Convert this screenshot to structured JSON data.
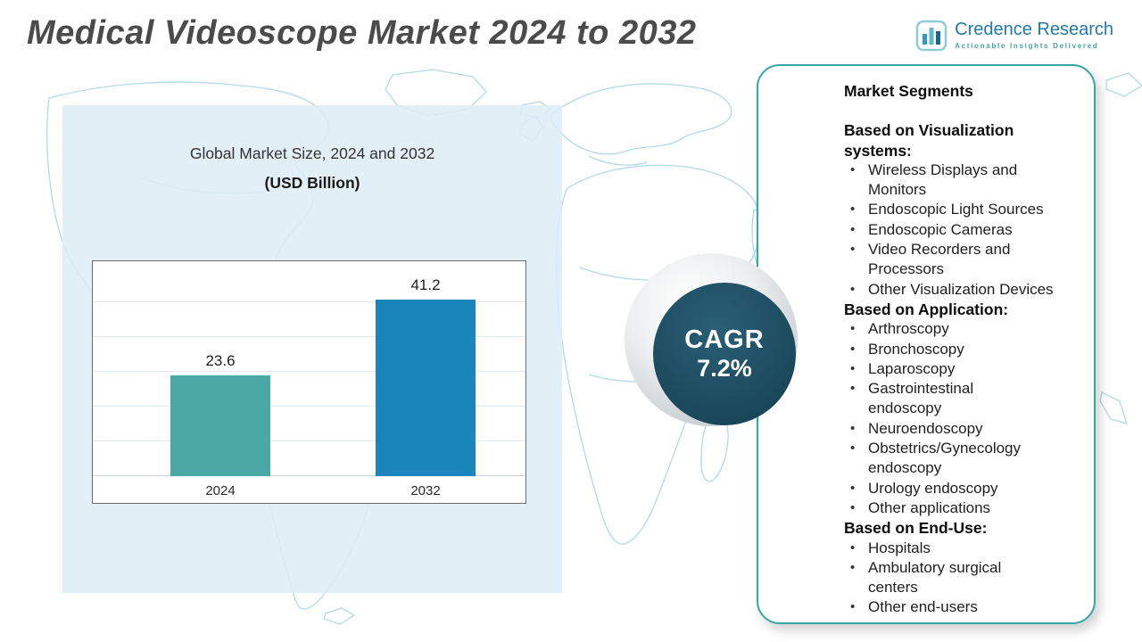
{
  "header": {
    "title": "Medical Videoscope Market 2024 to 2032",
    "logo": {
      "name": "Credence Research",
      "tagline": "Actionable Insights Delivered"
    }
  },
  "chart_panel": {
    "title_line1": "Global Market Size, 2024 and 2032",
    "title_line2": "(USD Billion)"
  },
  "chart_data": {
    "type": "bar",
    "title": "Global Market Size, 2024 and 2032 (USD Billion)",
    "categories": [
      "2024",
      "2032"
    ],
    "values": [
      23.6,
      41.2
    ],
    "value_labels": [
      "23.6",
      "41.2"
    ],
    "bar_colors": [
      "#4aa9a4",
      "#1a86bb"
    ],
    "xlabel": "",
    "ylabel": "",
    "ylim": [
      0,
      45
    ],
    "grid": true,
    "legend": false
  },
  "cagr": {
    "label": "CAGR",
    "value": "7.2%"
  },
  "segments": {
    "title": "Market Segments",
    "groups": [
      {
        "heading": "Based on Visualization\nsystems:",
        "items": [
          "Wireless Displays and\nMonitors",
          "Endoscopic Light Sources",
          "Endoscopic Cameras",
          "Video Recorders and\nProcessors",
          "Other Visualization Devices"
        ]
      },
      {
        "heading": "Based on Application:",
        "items": [
          "Arthroscopy",
          "Bronchoscopy",
          "Laparoscopy",
          "Gastrointestinal\nendoscopy",
          "Neuroendoscopy",
          "Obstetrics/Gynecology\nendoscopy",
          "Urology endoscopy",
          "Other applications"
        ]
      },
      {
        "heading": "Based on End-Use:",
        "items": [
          "Hospitals",
          "Ambulatory surgical\ncenters",
          "Other end-users"
        ]
      }
    ]
  },
  "colors": {
    "bar_2024": "#4aa9a4",
    "bar_2032": "#1a86bb",
    "cagr_circle": "#1c4a5e",
    "panel_border": "#35a8a4",
    "map_line": "#b3d9e8",
    "logo_blue": "#2379a9",
    "logo_teal": "#45a49e"
  }
}
